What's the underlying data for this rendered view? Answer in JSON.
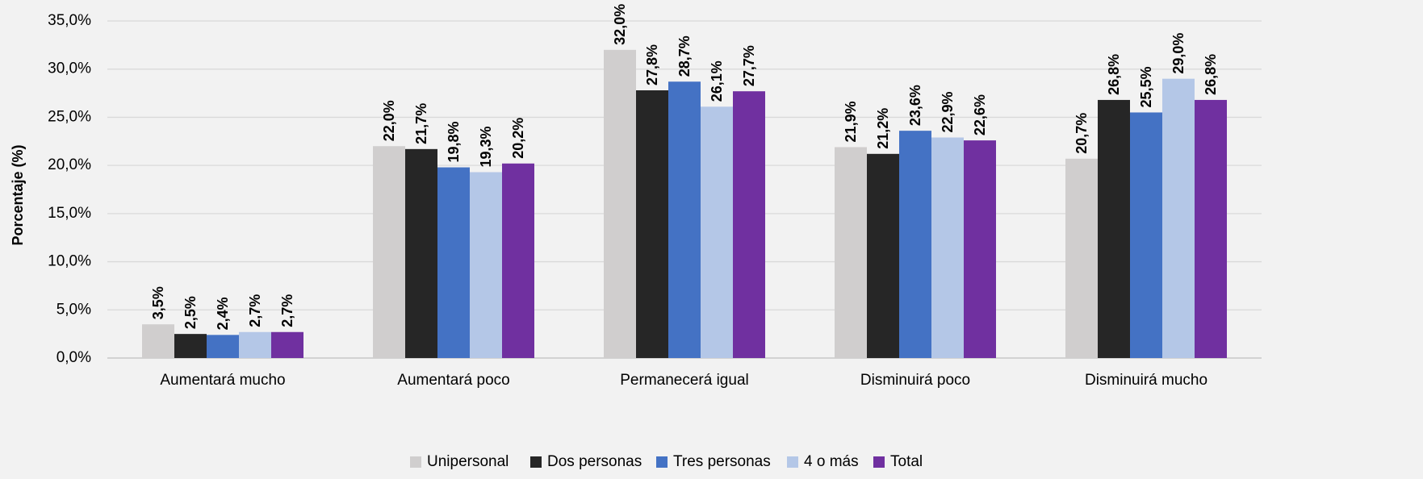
{
  "chart_data": {
    "type": "bar",
    "ylabel": "Porcentaje (%)",
    "ylim": [
      0,
      35
    ],
    "yticks": [
      "0,0%",
      "5,0%",
      "10,0%",
      "15,0%",
      "20,0%",
      "25,0%",
      "30,0%",
      "35,0%"
    ],
    "ytick_values": [
      0,
      5,
      10,
      15,
      20,
      25,
      30,
      35
    ],
    "grid": true,
    "legend_position": "bottom",
    "categories": [
      "Aumentará mucho",
      "Aumentará poco",
      "Permanecerá igual",
      "Disminuirá poco",
      "Disminuirá mucho"
    ],
    "series": [
      {
        "name": "Unipersonal",
        "color": "#d0cece",
        "values": [
          3.5,
          22.0,
          32.0,
          21.9,
          20.7
        ],
        "labels": [
          "3,5%",
          "22,0%",
          "32,0%",
          "21,9%",
          "20,7%"
        ]
      },
      {
        "name": "Dos personas",
        "color": "#262626",
        "values": [
          2.5,
          21.7,
          27.8,
          21.2,
          26.8
        ],
        "labels": [
          "2,5%",
          "21,7%",
          "27,8%",
          "21,2%",
          "26,8%"
        ]
      },
      {
        "name": "Tres personas",
        "color": "#4472c4",
        "values": [
          2.4,
          19.8,
          28.7,
          23.6,
          25.5
        ],
        "labels": [
          "2,4%",
          "19,8%",
          "28,7%",
          "23,6%",
          "25,5%"
        ]
      },
      {
        "name": "4 o más",
        "color": "#b4c7e7",
        "values": [
          2.7,
          19.3,
          26.1,
          22.9,
          29.0
        ],
        "labels": [
          "2,7%",
          "19,3%",
          "26,1%",
          "22,9%",
          "29,0%"
        ]
      },
      {
        "name": "Total",
        "color": "#7030a0",
        "values": [
          2.7,
          20.2,
          27.7,
          22.6,
          26.8
        ],
        "labels": [
          "2,7%",
          "20,2%",
          "27,7%",
          "22,6%",
          "26,8%"
        ]
      }
    ]
  }
}
